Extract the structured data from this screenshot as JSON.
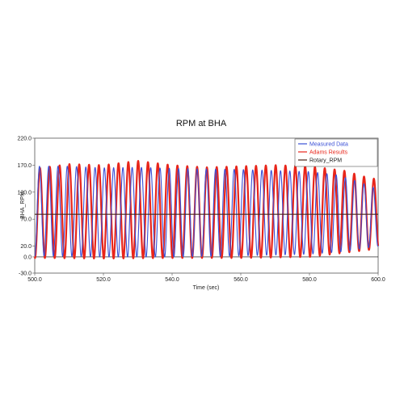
{
  "chart_data": {
    "type": "line",
    "title": "RPM at BHA",
    "xlabel": "Time (sec)",
    "ylabel": "BHA_RPM",
    "xlim": [
      500,
      600
    ],
    "ylim": [
      -30,
      220
    ],
    "x_ticks": [
      "500.0",
      "520.0",
      "540.0",
      "560.0",
      "580.0",
      "600.0"
    ],
    "y_ticks": [
      "-30.0",
      "0.0",
      "20.0",
      "70.0",
      "120.0",
      "170.0",
      "220.0"
    ],
    "y_tick_values": [
      -30,
      0,
      20,
      70,
      120,
      170,
      220
    ],
    "grid": false,
    "legend_position": "top-right",
    "series": [
      {
        "name": "Measured Data",
        "color": "#3a4fd6",
        "style": "oscillation",
        "period_sec": 2.7,
        "phase_sec": 1.2,
        "peaks": [
          [
            502,
            168
          ],
          [
            510,
            168
          ],
          [
            520,
            165
          ],
          [
            530,
            166
          ],
          [
            540,
            164
          ],
          [
            550,
            163
          ],
          [
            560,
            162
          ],
          [
            570,
            160
          ],
          [
            580,
            158
          ],
          [
            588,
            152
          ],
          [
            594,
            140
          ],
          [
            599,
            128
          ]
        ],
        "troughs": [
          [
            502,
            2
          ],
          [
            520,
            0
          ],
          [
            540,
            0
          ],
          [
            560,
            2
          ],
          [
            580,
            5
          ],
          [
            590,
            10
          ],
          [
            600,
            20
          ]
        ]
      },
      {
        "name": "Adams Results",
        "color": "#e8251a",
        "style": "oscillation",
        "period_sec": 2.86,
        "phase_sec": 0.3,
        "peaks": [
          [
            502,
            165
          ],
          [
            510,
            172
          ],
          [
            520,
            170
          ],
          [
            530,
            178
          ],
          [
            540,
            170
          ],
          [
            550,
            166
          ],
          [
            560,
            168
          ],
          [
            570,
            170
          ],
          [
            580,
            168
          ],
          [
            590,
            160
          ],
          [
            598,
            145
          ]
        ],
        "troughs": [
          [
            502,
            -2
          ],
          [
            520,
            -3
          ],
          [
            540,
            -2
          ],
          [
            560,
            -2
          ],
          [
            580,
            0
          ],
          [
            600,
            15
          ]
        ]
      },
      {
        "name": "Rotary_RPM",
        "color": "#4a2418",
        "style": "constant",
        "x": [
          500,
          600
        ],
        "values": [
          79,
          79
        ]
      }
    ]
  }
}
